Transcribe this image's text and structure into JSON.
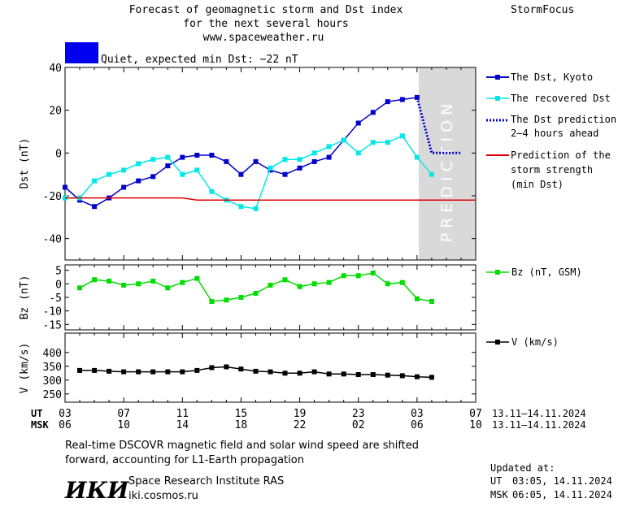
{
  "header": {
    "title_line1": "Forecast of geomagnetic storm and Dst index",
    "title_line2": "for the next several hours",
    "url": "www.spaceweather.ru",
    "brand": "StormFocus",
    "status_text": "Quiet, expected min Dst: −22 nT",
    "status_color": "#0000ee"
  },
  "legend": {
    "dst_kyoto": "The Dst, Kyoto",
    "dst_recovered": "The recovered Dst",
    "dst_prediction_l1": "The Dst prediction",
    "dst_prediction_l2": "2–4 hours ahead",
    "storm_l1": "Prediction of the",
    "storm_l2": "storm strength",
    "storm_l3": "(min Dst)",
    "bz": "Bz (nT, GSM)",
    "v": "V (km/s)"
  },
  "x_axis": {
    "ut_label": "UT",
    "msk_label": "MSK",
    "ut_ticks": [
      "03",
      "07",
      "11",
      "15",
      "19",
      "23",
      "03",
      "07"
    ],
    "msk_ticks": [
      "06",
      "10",
      "14",
      "18",
      "22",
      "02",
      "06",
      "10"
    ],
    "date_range_ut": "13.11–14.11.2024",
    "date_range_msk": "13.11–14.11.2024"
  },
  "footer": {
    "note_line1": "Real-time DSCOVR magnetic field and solar wind speed are shifted",
    "note_line2": "forward, accounting for L1-Earth propagation",
    "logo_text": "ИКИ",
    "institute": "Space Research Institute RAS",
    "site": "iki.cosmos.ru",
    "updated_label": "Updated at:",
    "updated_ut_label": "UT",
    "updated_ut": "03:05, 14.11.2024",
    "updated_msk_label": "MSK",
    "updated_msk": "06:05, 14.11.2024"
  },
  "chart_data": [
    {
      "type": "line",
      "ylabel": "Dst (nT)",
      "xlim": [
        3,
        31
      ],
      "ylim": [
        -50,
        40
      ],
      "yticks": [
        40,
        20,
        0,
        -20,
        -40
      ],
      "prediction_band": {
        "label": "PREDICTION",
        "from": 27,
        "to": 31
      },
      "series": [
        {
          "name": "The Dst, Kyoto",
          "color": "#0000cc",
          "marker": "square",
          "x": [
            3,
            4,
            5,
            6,
            7,
            8,
            9,
            10,
            11,
            12,
            13,
            14,
            15,
            16,
            17,
            18,
            19,
            20,
            21,
            22,
            23,
            24,
            25,
            26,
            27
          ],
          "y": [
            -16,
            -22,
            -25,
            -21,
            -16,
            -13,
            -11,
            -6,
            -2,
            -1,
            -1,
            -4,
            -10,
            -4,
            -8,
            -10,
            -7,
            -4,
            -2,
            6,
            14,
            19,
            24,
            25,
            26
          ]
        },
        {
          "name": "The recovered Dst",
          "color": "#00e8e8",
          "marker": "square",
          "x": [
            3,
            4,
            5,
            6,
            7,
            8,
            9,
            10,
            11,
            12,
            13,
            14,
            15,
            16,
            17,
            18,
            19,
            20,
            21,
            22,
            23,
            24,
            25,
            26,
            27,
            28
          ],
          "y": [
            -21,
            -21,
            -13,
            -10,
            -8,
            -5,
            -3,
            -2,
            -10,
            -8,
            -18,
            -22,
            -25,
            -26,
            -7,
            -3,
            -3,
            0,
            3,
            6,
            0,
            5,
            5,
            8,
            -2,
            -10
          ]
        },
        {
          "name": "The Dst prediction 2–4 hours ahead",
          "color": "#0000cc",
          "style": "dotted",
          "x": [
            27,
            28,
            30
          ],
          "y": [
            26,
            0,
            0
          ]
        },
        {
          "name": "Prediction of the storm strength (min Dst)",
          "color": "#dd0000",
          "x": [
            3,
            11,
            12,
            31
          ],
          "y": [
            -21,
            -21,
            -22,
            -22
          ]
        }
      ]
    },
    {
      "type": "line",
      "ylabel": "Bz (nT)",
      "xlim": [
        3,
        31
      ],
      "ylim": [
        -17,
        7
      ],
      "yticks": [
        5,
        0,
        -5,
        -10,
        -15
      ],
      "series": [
        {
          "name": "Bz (nT, GSM)",
          "color": "#00dd00",
          "marker": "square",
          "x": [
            4,
            5,
            6,
            7,
            8,
            9,
            10,
            11,
            12,
            13,
            14,
            15,
            16,
            17,
            18,
            19,
            20,
            21,
            22,
            23,
            24,
            25,
            26,
            27,
            28
          ],
          "y": [
            -1.5,
            1.5,
            1,
            -0.5,
            0,
            1,
            -1.5,
            0.5,
            2,
            -6.5,
            -6,
            -5,
            -3.5,
            -0.5,
            1.5,
            -1,
            0,
            0.5,
            3,
            3,
            4,
            0,
            0.5,
            -5.5,
            -6.5
          ]
        }
      ]
    },
    {
      "type": "line",
      "ylabel": "V (km/s)",
      "xlim": [
        3,
        31
      ],
      "ylim": [
        220,
        470
      ],
      "yticks": [
        400,
        350,
        300,
        250
      ],
      "series": [
        {
          "name": "V (km/s)",
          "color": "#000000",
          "marker": "square",
          "x": [
            4,
            5,
            6,
            7,
            8,
            9,
            10,
            11,
            12,
            13,
            14,
            15,
            16,
            17,
            18,
            19,
            20,
            21,
            22,
            23,
            24,
            25,
            26,
            27,
            28
          ],
          "y": [
            335,
            335,
            332,
            330,
            330,
            330,
            330,
            330,
            335,
            345,
            348,
            340,
            332,
            330,
            325,
            325,
            330,
            322,
            322,
            320,
            320,
            318,
            316,
            312,
            310
          ]
        }
      ]
    }
  ]
}
